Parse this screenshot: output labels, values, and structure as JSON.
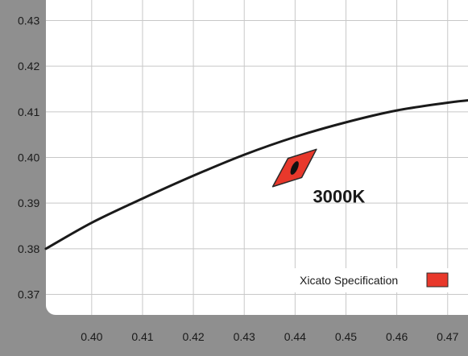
{
  "chart_data": {
    "type": "line",
    "title": "",
    "xlabel": "",
    "ylabel": "",
    "xlim": [
      0.391,
      0.474
    ],
    "ylim": [
      0.3655,
      0.4345
    ],
    "grid": true,
    "x_ticks": [
      0.4,
      0.41,
      0.42,
      0.43,
      0.44,
      0.45,
      0.46,
      0.47
    ],
    "x_tick_labels": [
      "0.40",
      "0.41",
      "0.42",
      "0.43",
      "0.44",
      "0.45",
      "0.46",
      "0.47"
    ],
    "y_ticks": [
      0.37,
      0.38,
      0.39,
      0.4,
      0.41,
      0.42,
      0.43
    ],
    "y_tick_labels": [
      "0.37",
      "0.38",
      "0.39",
      "0.40",
      "0.41",
      "0.42",
      "0.43"
    ],
    "series": [
      {
        "kind": "line",
        "color": "#1a1a1a",
        "x": [
          0.391,
          0.4,
          0.41,
          0.42,
          0.43,
          0.44,
          0.45,
          0.46,
          0.47,
          0.474
        ],
        "y": [
          0.38,
          0.3857,
          0.391,
          0.396,
          0.4006,
          0.4045,
          0.4077,
          0.4103,
          0.412,
          0.4125
        ]
      },
      {
        "kind": "region",
        "name": "Xicato Specification",
        "color": "#e8382b",
        "polygon": [
          [
            0.4356,
            0.3936
          ],
          [
            0.4386,
            0.3998
          ],
          [
            0.4442,
            0.4018
          ],
          [
            0.4413,
            0.3956
          ]
        ]
      },
      {
        "kind": "ellipse",
        "color": "#111111",
        "center": [
          0.4399,
          0.3977
        ],
        "rx": 0.0006,
        "ry": 0.0016,
        "angle_deg": 25
      }
    ],
    "annotations": [
      {
        "text": "3000K",
        "x": 0.4435,
        "y": 0.3915
      }
    ],
    "legend": {
      "position": "bottom-right",
      "entries": [
        {
          "label": "Xicato Specification",
          "color": "#e8382b"
        }
      ]
    },
    "colors": {
      "frame": "#8f8f8f",
      "plot_bg": "#ffffff",
      "grid": "#c8c8c8",
      "curve": "#1a1a1a",
      "spec_fill": "#e8382b",
      "spec_stroke": "#2a2a2a"
    }
  }
}
